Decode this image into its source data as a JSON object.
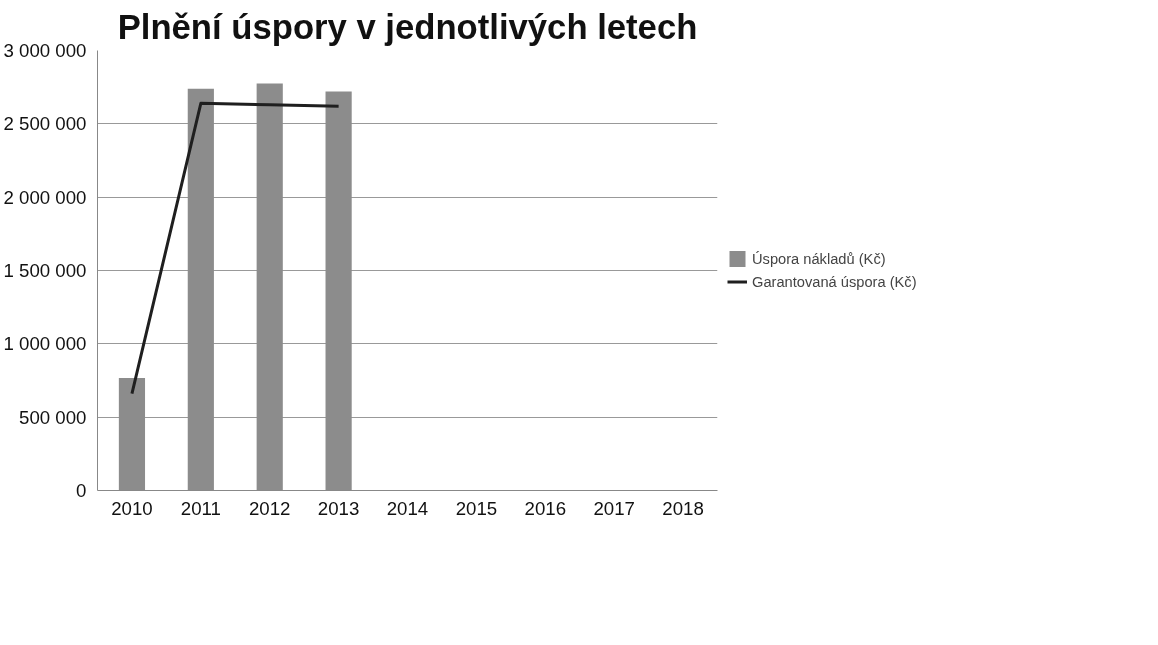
{
  "chart_data": {
    "type": "bar",
    "title": "Plnění úspory v jednotlivých letech",
    "categories": [
      "2010",
      "2011",
      "2012",
      "2013",
      "2014",
      "2015",
      "2016",
      "2017",
      "2018"
    ],
    "series": [
      {
        "name": "Úspora nákladů (Kč)",
        "color": "#8c8c8c",
        "values": [
          767000,
          2740000,
          2775000,
          2720000,
          null,
          null,
          null,
          null,
          null
        ]
      },
      {
        "name": "Garantovaná úspora (Kč)",
        "type": "line",
        "color": "#1f1f1f",
        "values": [
          660000,
          2640000,
          2630000,
          2620000,
          null,
          null,
          null,
          null,
          null
        ]
      }
    ],
    "ylim": [
      0,
      3000000
    ],
    "yticks": [
      {
        "value": 0,
        "label": "0"
      },
      {
        "value": 500000,
        "label": "500 000"
      },
      {
        "value": 1000000,
        "label": "1 000 000"
      },
      {
        "value": 1500000,
        "label": "1 500 000"
      },
      {
        "value": 2000000,
        "label": "2 000 000"
      },
      {
        "value": 2500000,
        "label": "2 500 000"
      },
      {
        "value": 3000000,
        "label": "3 000 000"
      }
    ],
    "grid": "y",
    "legend": "right"
  }
}
